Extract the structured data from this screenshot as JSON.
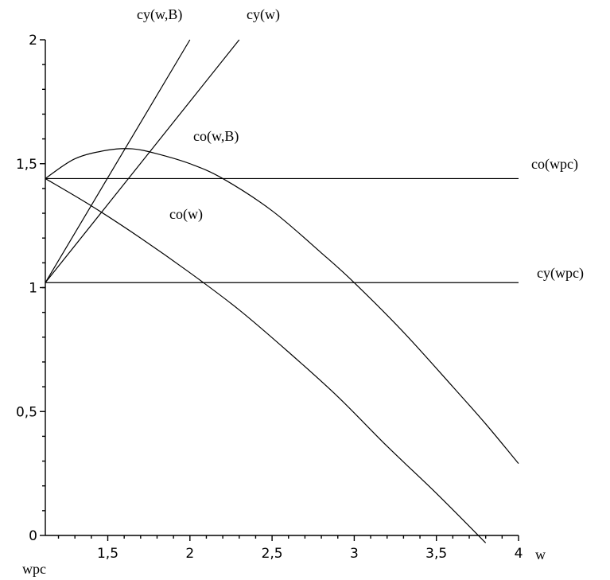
{
  "chart_data": {
    "type": "line",
    "xlabel": "w",
    "ylabel": "",
    "xlim": [
      1.12,
      4
    ],
    "ylim": [
      0,
      2
    ],
    "x_ticks": [
      "1,5",
      "2",
      "2,5",
      "3",
      "3,5",
      "4"
    ],
    "y_ticks": [
      "0",
      "0,5",
      "1",
      "1,5",
      "2"
    ],
    "x_tick_values": [
      1.5,
      2,
      2.5,
      3,
      3.5,
      4
    ],
    "y_tick_values": [
      0,
      0.5,
      1,
      1.5,
      2
    ],
    "origin_label": "wpc",
    "series": [
      {
        "name": "cy(w,B)",
        "x": [
          1.12,
          2.0
        ],
        "y": [
          1.02,
          2.0
        ]
      },
      {
        "name": "cy(w)",
        "x": [
          1.12,
          2.3
        ],
        "y": [
          1.02,
          2.0
        ]
      },
      {
        "name": "co(w,B)",
        "x": [
          1.12,
          1.3,
          1.5,
          1.65,
          1.8,
          2.0,
          2.2,
          2.5,
          2.8,
          3.0,
          3.3,
          3.6,
          3.8,
          4.0
        ],
        "y": [
          1.44,
          1.52,
          1.555,
          1.56,
          1.54,
          1.5,
          1.44,
          1.31,
          1.14,
          1.02,
          0.82,
          0.6,
          0.45,
          0.29
        ]
      },
      {
        "name": "co(w)",
        "x": [
          1.12,
          1.4,
          1.7,
          2.0,
          2.3,
          2.6,
          2.9,
          3.2,
          3.5,
          3.8
        ],
        "y": [
          1.44,
          1.33,
          1.2,
          1.06,
          0.91,
          0.74,
          0.56,
          0.36,
          0.17,
          -0.03
        ]
      },
      {
        "name": "co(wpc)",
        "x": [
          1.12,
          4.0
        ],
        "y": [
          1.44,
          1.44
        ]
      },
      {
        "name": "cy(wpc)",
        "x": [
          1.12,
          4.0
        ],
        "y": [
          1.02,
          1.02
        ]
      }
    ]
  }
}
